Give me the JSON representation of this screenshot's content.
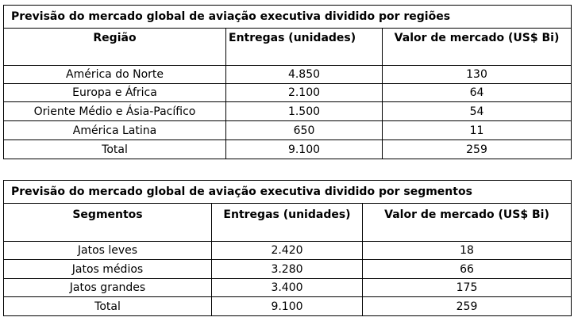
{
  "table1": {
    "caption": "Previsão do mercado global de aviação executiva dividido por regiões",
    "headers": [
      "Região",
      "Entregas (unidades)",
      "Valor de mercado (US$ Bi)"
    ],
    "rows": [
      [
        "América do Norte",
        "4.850",
        "130"
      ],
      [
        "Europa e África",
        "2.100",
        "64"
      ],
      [
        "Oriente Médio e Ásia-Pacífico",
        "1.500",
        "54"
      ],
      [
        "América Latina",
        "650",
        "11"
      ],
      [
        "Total",
        "9.100",
        "259"
      ]
    ]
  },
  "table2": {
    "caption": "Previsão do mercado global de aviação executiva dividido por segmentos",
    "headers": [
      "Segmentos",
      "Entregas (unidades)",
      "Valor de mercado (US$ Bi)"
    ],
    "rows": [
      [
        "Jatos leves",
        "2.420",
        "18"
      ],
      [
        "Jatos médios",
        "3.280",
        "66"
      ],
      [
        "Jatos grandes",
        "3.400",
        "175"
      ],
      [
        "Total",
        "9.100",
        "259"
      ]
    ]
  }
}
